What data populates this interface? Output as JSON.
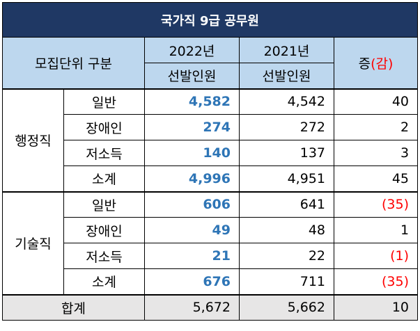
{
  "title": "국가직 9급 공무원",
  "header": {
    "category": "모집단위 구분",
    "year_2022": "2022년",
    "year_2021": "2021년",
    "sub_2022": "선발인원",
    "sub_2021": "선발인원",
    "change_prefix": "증",
    "change_suffix": "(감)"
  },
  "groups": [
    {
      "name": "행정직",
      "rows": [
        {
          "label": "일반",
          "v2022": "4,582",
          "v2021": "4,542",
          "change": "40"
        },
        {
          "label": "장애인",
          "v2022": "274",
          "v2021": "272",
          "change": "2"
        },
        {
          "label": "저소득",
          "v2022": "140",
          "v2021": "137",
          "change": "3"
        },
        {
          "label": "소계",
          "v2022": "4,996",
          "v2021": "4,951",
          "change": "45"
        }
      ]
    },
    {
      "name": "기술직",
      "rows": [
        {
          "label": "일반",
          "v2022": "606",
          "v2021": "641",
          "change": "(35)"
        },
        {
          "label": "장애인",
          "v2022": "49",
          "v2021": "48",
          "change": "1"
        },
        {
          "label": "저소득",
          "v2022": "21",
          "v2021": "22",
          "change": "(1)"
        },
        {
          "label": "소계",
          "v2022": "676",
          "v2021": "711",
          "change": "(35)"
        }
      ]
    }
  ],
  "total": {
    "label": "합계",
    "v2022": "5,672",
    "v2021": "5,662",
    "change": "10"
  },
  "colors": {
    "title_bg": "#1f3864",
    "header_bg": "#bdd7ee",
    "total_bg": "#e7e6e6",
    "highlight": "#2e75b6",
    "negative": "#ff0000"
  }
}
